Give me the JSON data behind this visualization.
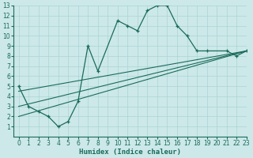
{
  "xlabel": "Humidex (Indice chaleur)",
  "bg_color": "#cce8e8",
  "line_color": "#1a6b5a",
  "xlim": [
    -0.5,
    23
  ],
  "ylim": [
    0,
    13
  ],
  "xticks": [
    0,
    1,
    2,
    3,
    4,
    5,
    6,
    7,
    8,
    9,
    10,
    11,
    12,
    13,
    14,
    15,
    16,
    17,
    18,
    19,
    20,
    21,
    22,
    23
  ],
  "yticks": [
    1,
    2,
    3,
    4,
    5,
    6,
    7,
    8,
    9,
    10,
    11,
    12,
    13
  ],
  "main_line": {
    "x": [
      0,
      1,
      2,
      3,
      4,
      5,
      6,
      7,
      8,
      10,
      11,
      12,
      13,
      14,
      15,
      16,
      17,
      18,
      19,
      21,
      22,
      23
    ],
    "y": [
      5.0,
      3.0,
      2.5,
      2.0,
      1.0,
      1.5,
      3.5,
      9.0,
      6.5,
      11.5,
      11.0,
      10.5,
      12.5,
      13.0,
      13.0,
      11.0,
      10.0,
      8.5,
      8.5,
      8.5,
      8.0,
      8.5
    ]
  },
  "straight_lines": [
    {
      "x": [
        0,
        23
      ],
      "y": [
        2.0,
        8.5
      ]
    },
    {
      "x": [
        0,
        23
      ],
      "y": [
        3.0,
        8.5
      ]
    },
    {
      "x": [
        0,
        23
      ],
      "y": [
        4.5,
        8.5
      ]
    }
  ],
  "grid_color": "#aad4d4",
  "font_size_xlabel": 6.5,
  "font_size_tick": 5.5
}
